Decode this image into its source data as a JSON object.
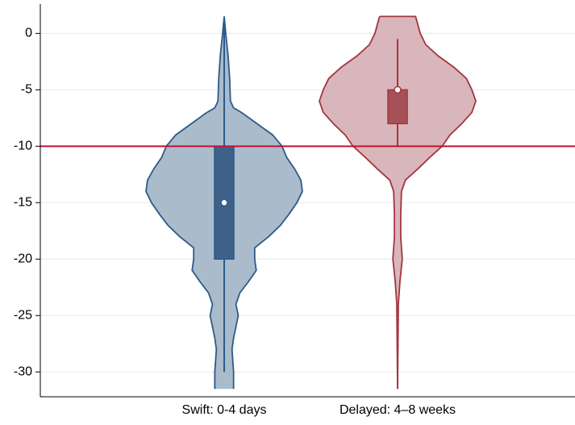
{
  "chart_data": {
    "type": "violin",
    "categories": [
      "Swift:  0-4 days",
      "Delayed: 4–8 weeks"
    ],
    "ylim": [
      -32.2,
      2.6
    ],
    "yticks": [
      0,
      -5,
      -10,
      -15,
      -20,
      -25,
      -30
    ],
    "grid": true,
    "reference_line": {
      "value": -10,
      "color": "#c8102e"
    },
    "series": [
      {
        "color": "#aabbcc",
        "edge_color": "#2d5b86",
        "box_color": "#3e6189",
        "whisker_low": -30,
        "q1": -20,
        "median": -15,
        "q3": -10,
        "whisker_high": 1.4,
        "density": {
          "y": [
            1.5,
            0,
            -2,
            -4,
            -6,
            -6.6,
            -7,
            -8,
            -9,
            -10,
            -11,
            -12,
            -13,
            -14,
            -15,
            -16,
            -17,
            -18,
            -19,
            -20,
            -21,
            -22,
            -23,
            -24,
            -25,
            -26,
            -27,
            -28,
            -30,
            -31.5
          ],
          "width": [
            0,
            0.02,
            0.05,
            0.07,
            0.08,
            0.12,
            0.22,
            0.42,
            0.62,
            0.74,
            0.8,
            0.9,
            0.98,
            1,
            0.93,
            0.83,
            0.72,
            0.57,
            0.39,
            0.39,
            0.41,
            0.31,
            0.2,
            0.15,
            0.18,
            0.15,
            0.12,
            0.1,
            0.12,
            0.12
          ]
        }
      },
      {
        "color": "#d9b6bb",
        "edge_color": "#a3353f",
        "box_color": "#a65058",
        "whisker_low": -10,
        "q1": -8,
        "median": -5,
        "q3": -5,
        "whisker_high": -0.5,
        "density": {
          "y": [
            1.5,
            0,
            -1,
            -2,
            -3,
            -4,
            -5,
            -6,
            -7,
            -8,
            -9,
            -10,
            -11,
            -12,
            -13,
            -14,
            -16,
            -18,
            -20,
            -22,
            -24,
            -31.5
          ],
          "width": [
            0.23,
            0.29,
            0.36,
            0.52,
            0.72,
            0.88,
            0.95,
            1,
            0.95,
            0.82,
            0.67,
            0.57,
            0.41,
            0.26,
            0.1,
            0.05,
            0.04,
            0.04,
            0.06,
            0.03,
            0.01,
            0
          ]
        }
      }
    ]
  }
}
